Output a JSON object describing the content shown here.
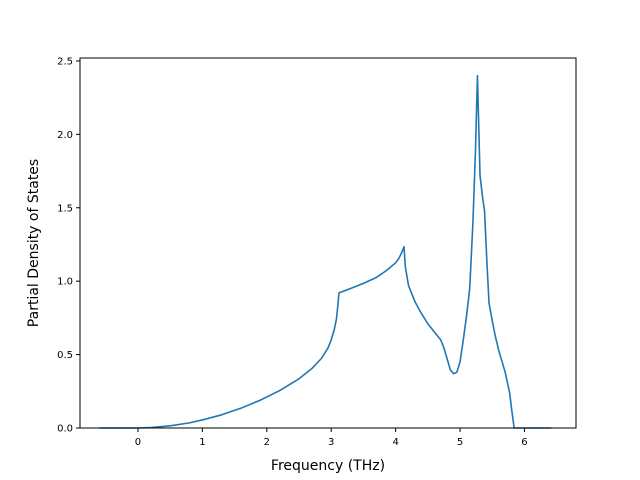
{
  "chart_data": {
    "type": "line",
    "title": "",
    "xlabel": "Frequency (THz)",
    "ylabel": "Partial Density of States",
    "xlim": [
      -0.9,
      6.8
    ],
    "ylim": [
      0.0,
      2.52
    ],
    "xticks": [
      0,
      1,
      2,
      3,
      4,
      5,
      6
    ],
    "yticks": [
      0.0,
      0.5,
      1.0,
      1.5,
      2.0,
      2.5
    ],
    "xtick_labels": [
      "0",
      "1",
      "2",
      "3",
      "4",
      "5",
      "6"
    ],
    "ytick_labels": [
      "0.0",
      "0.5",
      "1.0",
      "1.5",
      "2.0",
      "2.5"
    ],
    "grid": false,
    "legend": "none",
    "series": [
      {
        "color": "#1f77b4",
        "points": [
          [
            -0.6,
            0.0
          ],
          [
            0.0,
            0.0
          ],
          [
            0.2,
            0.003
          ],
          [
            0.5,
            0.015
          ],
          [
            0.8,
            0.035
          ],
          [
            1.0,
            0.055
          ],
          [
            1.3,
            0.09
          ],
          [
            1.6,
            0.135
          ],
          [
            1.9,
            0.19
          ],
          [
            2.2,
            0.255
          ],
          [
            2.5,
            0.335
          ],
          [
            2.7,
            0.405
          ],
          [
            2.85,
            0.475
          ],
          [
            2.95,
            0.545
          ],
          [
            3.0,
            0.6
          ],
          [
            3.05,
            0.675
          ],
          [
            3.08,
            0.74
          ],
          [
            3.1,
            0.82
          ],
          [
            3.12,
            0.92
          ],
          [
            3.3,
            0.95
          ],
          [
            3.5,
            0.985
          ],
          [
            3.7,
            1.025
          ],
          [
            3.85,
            1.07
          ],
          [
            4.0,
            1.125
          ],
          [
            4.05,
            1.155
          ],
          [
            4.1,
            1.2
          ],
          [
            4.13,
            1.235
          ],
          [
            4.15,
            1.1
          ],
          [
            4.2,
            0.97
          ],
          [
            4.3,
            0.86
          ],
          [
            4.4,
            0.78
          ],
          [
            4.5,
            0.71
          ],
          [
            4.6,
            0.655
          ],
          [
            4.7,
            0.6
          ],
          [
            4.75,
            0.545
          ],
          [
            4.8,
            0.47
          ],
          [
            4.85,
            0.395
          ],
          [
            4.9,
            0.37
          ],
          [
            4.95,
            0.38
          ],
          [
            5.0,
            0.45
          ],
          [
            5.05,
            0.6
          ],
          [
            5.1,
            0.76
          ],
          [
            5.15,
            0.95
          ],
          [
            5.2,
            1.4
          ],
          [
            5.24,
            1.9
          ],
          [
            5.27,
            2.4
          ],
          [
            5.31,
            1.72
          ],
          [
            5.35,
            1.57
          ],
          [
            5.38,
            1.48
          ],
          [
            5.42,
            1.1
          ],
          [
            5.45,
            0.85
          ],
          [
            5.5,
            0.73
          ],
          [
            5.55,
            0.62
          ],
          [
            5.6,
            0.53
          ],
          [
            5.7,
            0.38
          ],
          [
            5.77,
            0.24
          ],
          [
            5.8,
            0.13
          ],
          [
            5.84,
            0.0
          ],
          [
            6.0,
            0.0
          ],
          [
            6.42,
            0.0
          ]
        ]
      }
    ]
  }
}
